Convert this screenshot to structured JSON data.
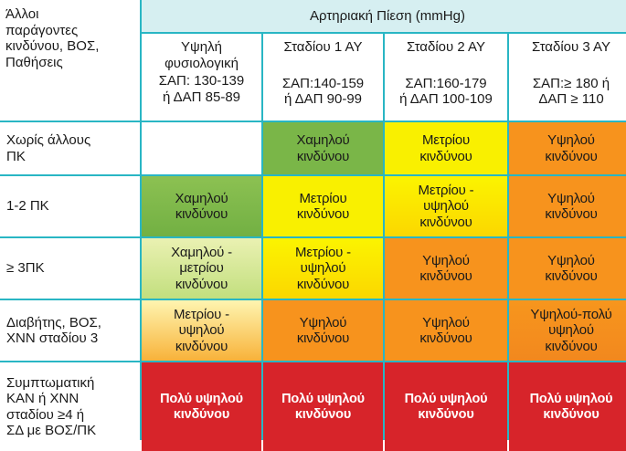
{
  "corner_label": "Άλλοι\nπαράγοντες\nκινδύνου, ΒΟΣ,\nΠαθήσεις",
  "header_title": "Αρτηριακή Πίεση (mmHg)",
  "stages": [
    {
      "name": "Υψηλή\nφυσιολογική",
      "desc": "ΣΑΠ: 130-139\nή ΔΑΠ 85-89",
      "pad": false
    },
    {
      "name": "Σταδίου 1 ΑΥ",
      "desc": "ΣΑΠ:140-159\nή ΔΑΠ 90-99",
      "pad": true
    },
    {
      "name": "Σταδίου 2 ΑΥ",
      "desc": "ΣΑΠ:160-179\nή ΔΑΠ 100-109",
      "pad": true
    },
    {
      "name": "Σταδίου 3 ΑΥ",
      "desc": "ΣΑΠ:≥ 180 ή\nΔΑΠ ≥ 110",
      "pad": true
    }
  ],
  "colors": {
    "header_bg": "#d6eff1",
    "border": "#29b6c4",
    "low": "#7ab648",
    "low_moderate": "#c5e07f",
    "moderate": "#f9f000",
    "moderate_high": "#fbe100",
    "high": "#f7931d",
    "very_high": "#d7242a"
  },
  "rows": [
    {
      "label": "Χωρίς άλλους\nΠΚ",
      "cells": [
        {
          "text": "",
          "bg": "#ffffff",
          "bold": false
        },
        {
          "text": "Χαμηλού\nκινδύνου",
          "bg": "#7ab648",
          "bold": false
        },
        {
          "text": "Μετρίου\nκινδύνου",
          "bg": "#f9f000",
          "bold": false
        },
        {
          "text": "Υψηλού\nκινδύνου",
          "bg": "#f7931d",
          "bold": false
        }
      ]
    },
    {
      "label": "1-2 ΠΚ",
      "cells": [
        {
          "text": "Χαμηλού\nκινδύνου",
          "bg": "linear-gradient(180deg,#8cc152,#72b043)",
          "bold": false
        },
        {
          "text": "Μετρίου\nκινδύνου",
          "bg": "#f9f000",
          "bold": false
        },
        {
          "text": "Μετρίου -\nυψηλού\nκινδύνου",
          "bg": "linear-gradient(180deg,#fbf400,#fbd700)",
          "bold": false
        },
        {
          "text": "Υψηλού\nκινδύνου",
          "bg": "#f7931d",
          "bold": false
        }
      ]
    },
    {
      "label": "≥ 3ΠΚ",
      "cells": [
        {
          "text": "Χαμηλού -\nμετρίου\nκινδύνου",
          "bg": "linear-gradient(180deg,#eaf1b2,#c2df7e)",
          "bold": false
        },
        {
          "text": "Μετρίου -\nυψηλού\nκινδύνου",
          "bg": "linear-gradient(180deg,#fbf400,#fbd700)",
          "bold": false
        },
        {
          "text": "Υψηλού\nκινδύνου",
          "bg": "#f7931d",
          "bold": false
        },
        {
          "text": "Υψηλού\nκινδύνου",
          "bg": "#f7931d",
          "bold": false
        }
      ]
    },
    {
      "label": "Διαβήτης, ΒΟΣ,\nΧΝΝ σταδίου 3",
      "cells": [
        {
          "text": "Μετρίου -\nυψηλού\nκινδύνου",
          "bg": "linear-gradient(180deg,#fef5b0,#f8b23a)",
          "bold": false
        },
        {
          "text": "Υψηλού\nκινδύνου",
          "bg": "#f7931d",
          "bold": false
        },
        {
          "text": "Υψηλού\nκινδύνου",
          "bg": "#f7931d",
          "bold": false
        },
        {
          "text": "Υψηλού-πολύ\nυψηλού\nκινδύνου",
          "bg": "linear-gradient(180deg,#f7961d,#f2881e)",
          "bold": false
        }
      ]
    },
    {
      "label": "Συμπτωματική\nΚΑΝ ή ΧΝΝ\nσταδίου ≥4 ή\nΣΔ με ΒΟΣ/ΠΚ",
      "cells": [
        {
          "text": "Πολύ υψηλού\nκινδύνου",
          "bg": "#d7242a",
          "bold": true
        },
        {
          "text": "Πολύ υψηλού\nκινδύνου",
          "bg": "#d7242a",
          "bold": true
        },
        {
          "text": "Πολύ υψηλού\nκινδύνου",
          "bg": "#d7242a",
          "bold": true
        },
        {
          "text": "Πολύ υψηλού\nκινδύνου",
          "bg": "#d7242a",
          "bold": true
        }
      ]
    }
  ]
}
